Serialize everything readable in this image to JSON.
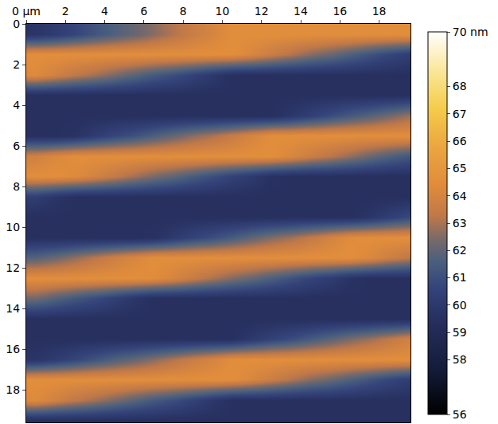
{
  "chart_data": {
    "type": "heatmap",
    "x": [
      0.5,
      1.5,
      2.5,
      3.5,
      4.5,
      5.5,
      6.5,
      7.5,
      8.5,
      9.5,
      10.5,
      11.5,
      12.5,
      13.5,
      14.5,
      15.5,
      16.5,
      17.5,
      18.5,
      19.5
    ],
    "y": [
      0.5,
      1.5,
      2.5,
      3.5,
      4.5,
      5.5,
      6.5,
      7.5,
      8.5,
      9.5,
      10.5,
      11.5,
      12.5,
      13.5,
      14.5,
      15.5,
      16.5,
      17.5,
      18.5,
      19.5
    ],
    "cells": [
      [
        59.8,
        60.2,
        60.7,
        61.2,
        61.7,
        62.1,
        62.6,
        63.1,
        63.6,
        64.0,
        64.5,
        64.5,
        64.5,
        64.5,
        64.5,
        64.5,
        64.5,
        64.5,
        64.5,
        64.5
      ],
      [
        64.5,
        64.5,
        64.5,
        64.5,
        64.5,
        64.5,
        64.5,
        64.5,
        64.5,
        64.5,
        64.5,
        64.1,
        63.6,
        63.1,
        62.6,
        62.2,
        61.7,
        61.2,
        60.7,
        60.3
      ],
      [
        64.3,
        63.8,
        63.3,
        62.9,
        62.4,
        61.9,
        61.4,
        61.0,
        60.5,
        60.0,
        59.5,
        59.5,
        59.5,
        59.5,
        59.5,
        59.5,
        59.5,
        59.5,
        59.5,
        59.5
      ],
      [
        59.5,
        59.5,
        59.5,
        59.5,
        59.5,
        59.5,
        59.5,
        59.5,
        59.5,
        59.5,
        59.5,
        59.5,
        59.5,
        59.5,
        59.5,
        59.5,
        59.5,
        59.5,
        59.5,
        59.5
      ],
      [
        59.5,
        59.5,
        59.5,
        59.5,
        59.5,
        59.5,
        59.5,
        59.5,
        59.5,
        59.5,
        59.5,
        59.5,
        59.5,
        59.9,
        60.4,
        60.9,
        61.4,
        61.8,
        62.3,
        62.8
      ],
      [
        59.5,
        59.5,
        59.7,
        60.2,
        60.7,
        61.1,
        61.6,
        62.1,
        62.6,
        63.0,
        63.5,
        64.0,
        64.5,
        64.5,
        64.5,
        64.5,
        64.5,
        64.5,
        64.5,
        64.5
      ],
      [
        63.8,
        64.2,
        64.5,
        64.5,
        64.5,
        64.5,
        64.5,
        64.5,
        64.5,
        64.5,
        64.5,
        64.5,
        64.5,
        64.1,
        63.6,
        63.2,
        62.7,
        62.2,
        61.7,
        61.3
      ],
      [
        64.5,
        64.5,
        64.3,
        63.9,
        63.4,
        62.9,
        62.4,
        62.0,
        61.5,
        61.0,
        60.5,
        60.1,
        59.6,
        59.5,
        59.5,
        59.5,
        59.5,
        59.5,
        59.5,
        59.5
      ],
      [
        60.3,
        59.8,
        59.5,
        59.5,
        59.5,
        59.5,
        59.5,
        59.5,
        59.5,
        59.5,
        59.5,
        59.5,
        59.5,
        59.5,
        59.5,
        59.5,
        59.5,
        59.5,
        59.5,
        59.5
      ],
      [
        59.5,
        59.5,
        59.5,
        59.5,
        59.5,
        59.5,
        59.5,
        59.5,
        59.5,
        59.5,
        59.5,
        59.5,
        59.5,
        59.5,
        59.5,
        59.5,
        59.5,
        59.8,
        60.3,
        60.8
      ],
      [
        59.5,
        59.5,
        59.5,
        59.5,
        59.5,
        59.5,
        59.6,
        60.1,
        60.6,
        61.0,
        61.5,
        62.0,
        62.5,
        62.9,
        63.4,
        63.9,
        64.4,
        64.5,
        64.5,
        64.5
      ],
      [
        61.8,
        62.2,
        62.7,
        63.2,
        63.7,
        64.1,
        64.5,
        64.5,
        64.5,
        64.5,
        64.5,
        64.5,
        64.5,
        64.5,
        64.5,
        64.5,
        64.5,
        64.2,
        63.7,
        63.3
      ],
      [
        64.5,
        64.5,
        64.5,
        64.5,
        64.5,
        64.5,
        64.4,
        64.0,
        63.5,
        63.0,
        62.5,
        62.1,
        61.6,
        61.1,
        60.6,
        60.2,
        59.7,
        59.5,
        59.5,
        59.5
      ],
      [
        62.3,
        61.8,
        61.3,
        60.9,
        60.4,
        59.9,
        59.5,
        59.5,
        59.5,
        59.5,
        59.5,
        59.5,
        59.5,
        59.5,
        59.5,
        59.5,
        59.5,
        59.5,
        59.5,
        59.5
      ],
      [
        59.5,
        59.5,
        59.5,
        59.5,
        59.5,
        59.5,
        59.5,
        59.5,
        59.5,
        59.5,
        59.5,
        59.5,
        59.5,
        59.5,
        59.5,
        59.5,
        59.5,
        59.5,
        59.5,
        59.5
      ],
      [
        59.5,
        59.5,
        59.5,
        59.5,
        59.5,
        59.5,
        59.5,
        59.5,
        59.5,
        59.5,
        59.5,
        60.0,
        60.5,
        60.9,
        61.4,
        61.9,
        62.4,
        62.8,
        63.3,
        63.8
      ],
      [
        59.8,
        60.2,
        60.7,
        61.2,
        61.7,
        62.1,
        62.6,
        63.1,
        63.6,
        64.0,
        64.5,
        64.5,
        64.5,
        64.5,
        64.5,
        64.5,
        64.5,
        64.5,
        64.5,
        64.5
      ],
      [
        64.5,
        64.5,
        64.5,
        64.5,
        64.5,
        64.5,
        64.5,
        64.5,
        64.5,
        64.5,
        64.5,
        64.1,
        63.6,
        63.1,
        62.6,
        62.2,
        61.7,
        61.2,
        60.7,
        60.3
      ],
      [
        64.3,
        63.8,
        63.3,
        62.9,
        62.4,
        61.9,
        61.4,
        61.0,
        60.5,
        60.0,
        59.5,
        59.5,
        59.5,
        59.5,
        59.5,
        59.5,
        59.5,
        59.5,
        59.5,
        59.5
      ],
      [
        59.5,
        59.5,
        59.5,
        59.5,
        59.5,
        59.5,
        59.5,
        59.5,
        59.5,
        59.5,
        59.5,
        59.5,
        59.5,
        59.5,
        59.5,
        59.5,
        59.5,
        59.5,
        59.5,
        59.5
      ]
    ],
    "xlim": [
      0,
      19.6
    ],
    "xticks": [
      {
        "value": 0,
        "label": "0 µm"
      },
      2,
      4,
      6,
      8,
      10,
      12,
      14,
      16,
      18
    ],
    "ylim": [
      0,
      19.6
    ],
    "yticks": [
      0,
      2,
      4,
      6,
      8,
      10,
      12,
      14,
      16,
      18
    ],
    "colorbar_range": [
      56,
      70
    ],
    "colorbar_ticks": [
      56,
      58,
      59,
      60,
      61,
      62,
      63,
      64,
      65,
      66,
      67,
      68,
      {
        "value": 70,
        "label": "70 nm"
      }
    ]
  }
}
